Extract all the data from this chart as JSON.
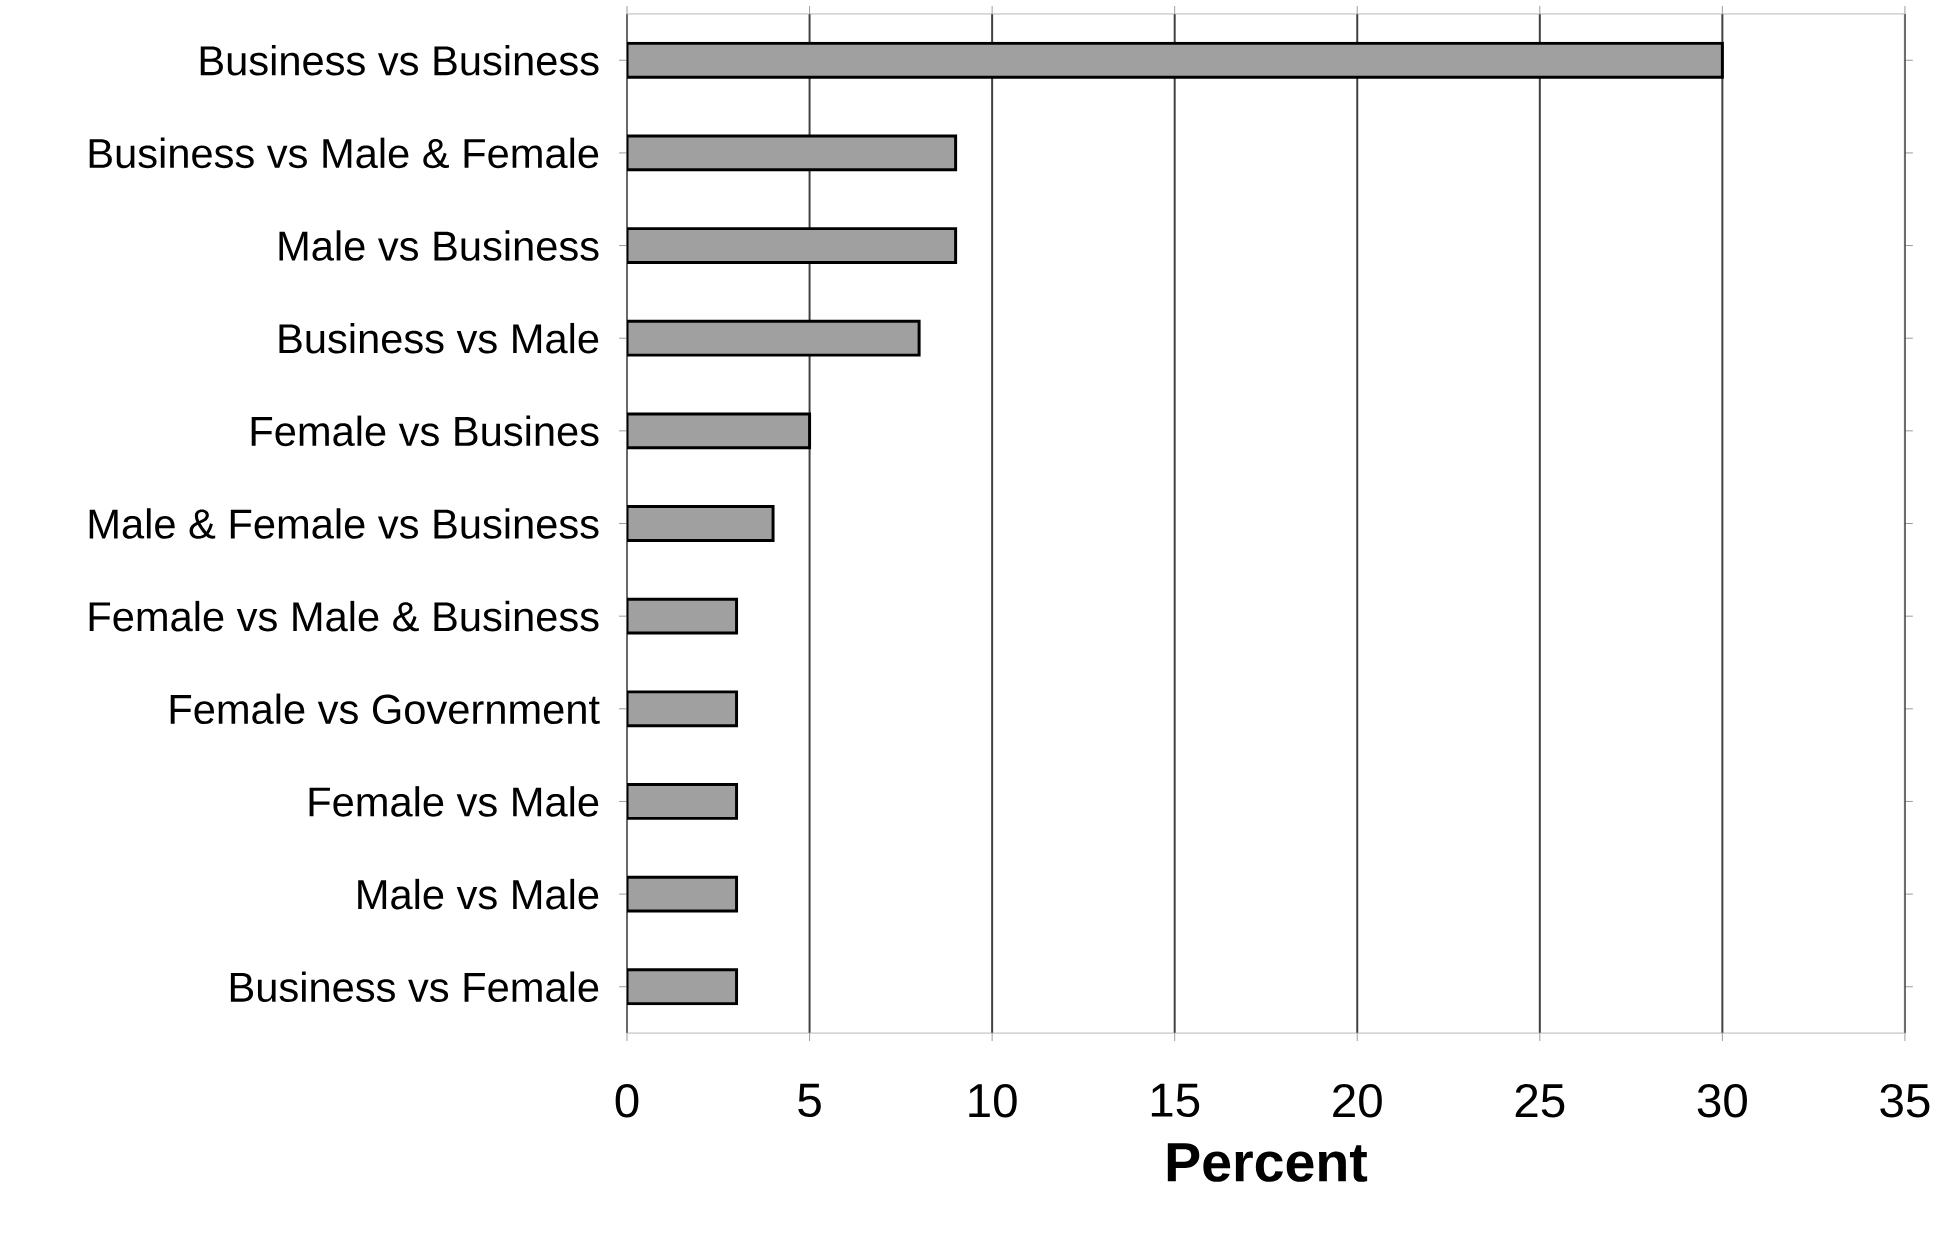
{
  "chart_data": {
    "type": "bar",
    "orientation": "horizontal",
    "xlabel": "Percent",
    "categories": [
      "Business vs Business",
      "Business vs Male & Female",
      "Male vs Business",
      "Business vs Male",
      "Female vs Busines",
      "Male & Female vs Business",
      "Female vs Male & Business",
      "Female vs Government",
      "Female vs Male",
      "Male vs Male",
      "Business vs Female"
    ],
    "values": [
      30,
      9,
      9,
      8,
      5,
      4,
      3,
      3,
      3,
      3,
      3
    ],
    "color": "#a0a0a0",
    "xlim": [
      0,
      35
    ],
    "xticks": [
      0,
      5,
      10,
      15,
      20,
      25,
      30,
      35
    ],
    "grid": "x"
  }
}
